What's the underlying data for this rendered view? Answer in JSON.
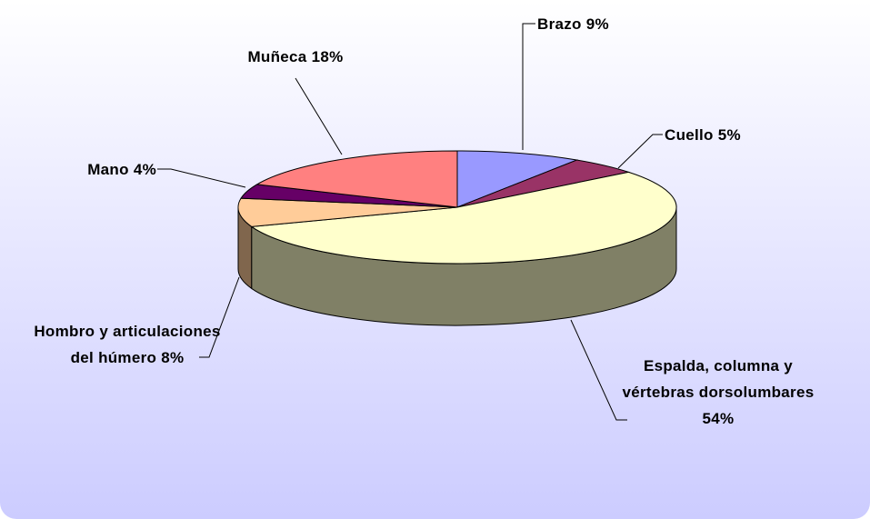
{
  "chart_data": {
    "type": "pie3d",
    "categories": [
      "Brazo",
      "Cuello",
      "Espalda, columna y vértebras dorsolumbares",
      "Hombro y articulaciones del húmero",
      "Mano",
      "Muñeca"
    ],
    "values": [
      9,
      5,
      54,
      8,
      4,
      18
    ],
    "value_labels": [
      "9%",
      "5%",
      "54%",
      "8%",
      "4%",
      "18%"
    ],
    "colors": [
      "#9999ff",
      "#993366",
      "#ffffcc",
      "#ffcc99",
      "#660066",
      "#ff8080"
    ]
  }
}
